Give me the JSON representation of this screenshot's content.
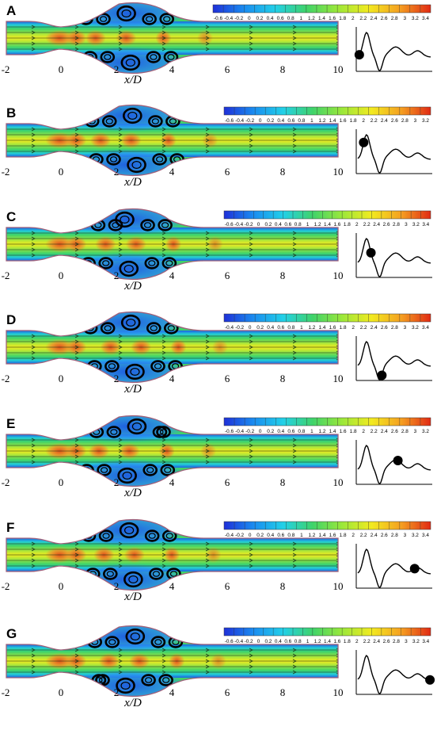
{
  "figure": {
    "axis_label": "x/D",
    "tick_labels": [
      "-2",
      "0",
      "2",
      "4",
      "6",
      "8",
      "10"
    ],
    "panels": [
      {
        "label": "A",
        "colorbar_ticks": [
          "-0.6",
          "-0.4",
          "-0.2",
          "0",
          "0.2",
          "0.4",
          "0.6",
          "0.8",
          "1",
          "1.2",
          "1.4",
          "1.6",
          "1.8",
          "2",
          "2.2",
          "2.4",
          "2.6",
          "2.8",
          "3",
          "3.2",
          "3.4"
        ],
        "waveform_marker_fraction": 0.02
      },
      {
        "label": "B",
        "colorbar_ticks": [
          "-0.6",
          "-0.4",
          "-0.2",
          "0",
          "0.2",
          "0.4",
          "0.6",
          "0.8",
          "1",
          "1.2",
          "1.4",
          "1.6",
          "1.8",
          "2",
          "2.2",
          "2.4",
          "2.6",
          "2.8",
          "3",
          "3.2"
        ],
        "waveform_marker_fraction": 0.08
      },
      {
        "label": "C",
        "colorbar_ticks": [
          "-0.6",
          "-0.4",
          "-0.2",
          "0",
          "0.2",
          "0.4",
          "0.6",
          "0.8",
          "1",
          "1.2",
          "1.4",
          "1.6",
          "1.8",
          "2",
          "2.2",
          "2.4",
          "2.6",
          "2.8",
          "3",
          "3.2",
          "3.4"
        ],
        "waveform_marker_fraction": 0.18
      },
      {
        "label": "D",
        "colorbar_ticks": [
          "-0.4",
          "-0.2",
          "0",
          "0.2",
          "0.4",
          "0.6",
          "0.8",
          "1",
          "1.2",
          "1.4",
          "1.6",
          "1.8",
          "2",
          "2.2",
          "2.4",
          "2.6",
          "2.8",
          "3",
          "3.2",
          "3.4"
        ],
        "waveform_marker_fraction": 0.33
      },
      {
        "label": "E",
        "colorbar_ticks": [
          "-0.6",
          "-0.4",
          "-0.2",
          "0",
          "0.2",
          "0.4",
          "0.6",
          "0.8",
          "1",
          "1.2",
          "1.4",
          "1.6",
          "1.8",
          "2",
          "2.2",
          "2.4",
          "2.6",
          "2.8",
          "3",
          "3.2"
        ],
        "waveform_marker_fraction": 0.55
      },
      {
        "label": "F",
        "colorbar_ticks": [
          "-0.4",
          "-0.2",
          "0",
          "0.2",
          "0.4",
          "0.6",
          "0.8",
          "1",
          "1.2",
          "1.4",
          "1.6",
          "1.8",
          "2",
          "2.2",
          "2.4",
          "2.6",
          "2.8",
          "3",
          "3.2",
          "3.4"
        ],
        "waveform_marker_fraction": 0.78
      },
      {
        "label": "G",
        "colorbar_ticks": [
          "-0.6",
          "-0.4",
          "-0.2",
          "0",
          "0.2",
          "0.4",
          "0.6",
          "0.8",
          "1",
          "1.2",
          "1.4",
          "1.6",
          "1.8",
          "2",
          "2.2",
          "2.4",
          "2.6",
          "2.8",
          "3",
          "3.2",
          "3.4"
        ],
        "waveform_marker_fraction": 0.99
      }
    ],
    "colors": {
      "wall": "#a0607a",
      "background_field": "#3fd36a",
      "core_high": "#f08c2a",
      "core_peak": "#e33c1a",
      "recirculation": "#1f5fe0",
      "vortex_line": "#000000",
      "colorbar_stops": [
        "#1f30d8",
        "#1a8cf0",
        "#22d0e8",
        "#3fd36a",
        "#9be83a",
        "#f2ea20",
        "#f5a021",
        "#e02a14"
      ]
    }
  }
}
